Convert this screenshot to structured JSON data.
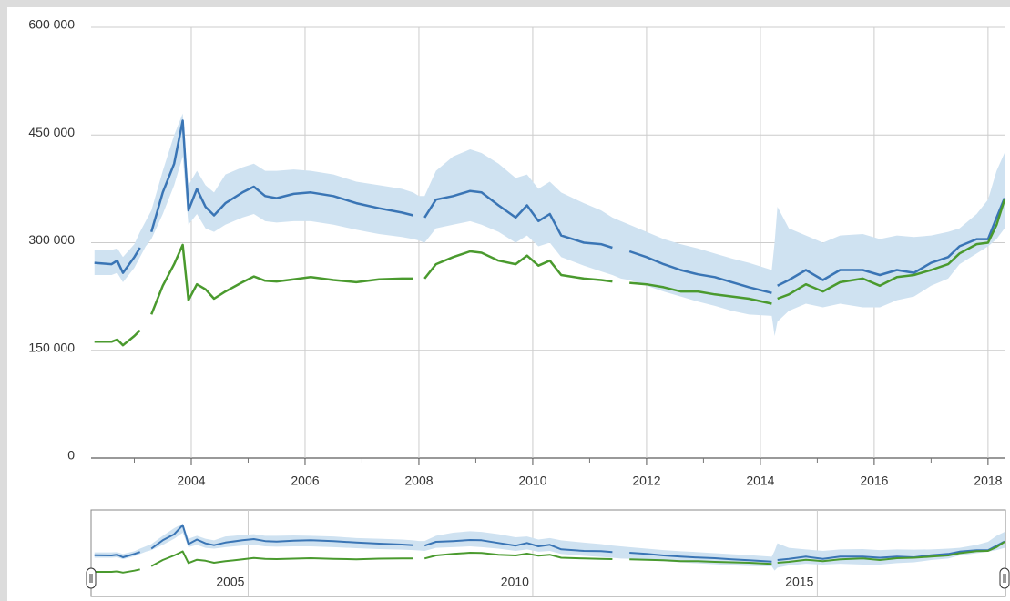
{
  "chart_data": {
    "type": "line",
    "x": [
      2002.3,
      2002.6,
      2002.7,
      2002.8,
      2003.0,
      2003.1,
      2003.2,
      2003.3,
      2003.5,
      2003.7,
      2003.85,
      2003.95,
      2004.1,
      2004.25,
      2004.4,
      2004.6,
      2004.9,
      2005.1,
      2005.3,
      2005.5,
      2005.8,
      2006.1,
      2006.5,
      2006.9,
      2007.3,
      2007.7,
      2007.9,
      2008.0,
      2008.1,
      2008.3,
      2008.6,
      2008.9,
      2009.1,
      2009.4,
      2009.7,
      2009.9,
      2010.1,
      2010.3,
      2010.5,
      2010.9,
      2011.2,
      2011.4,
      2011.55,
      2011.7,
      2012.0,
      2012.3,
      2012.6,
      2012.9,
      2013.2,
      2013.5,
      2013.8,
      2014.2,
      2014.25,
      2014.3,
      2014.5,
      2014.8,
      2015.1,
      2015.4,
      2015.8,
      2016.1,
      2016.4,
      2016.7,
      2017.0,
      2017.3,
      2017.5,
      2017.8,
      2018.0,
      2018.15,
      2018.29
    ],
    "series": [
      {
        "color": "#3a75b5",
        "values": [
          272000,
          270000,
          275000,
          258000,
          280000,
          293000,
          null,
          315000,
          370000,
          410000,
          470000,
          345000,
          375000,
          350000,
          338000,
          355000,
          370000,
          378000,
          365000,
          362000,
          368000,
          370000,
          365000,
          355000,
          348000,
          342000,
          338000,
          null,
          335000,
          360000,
          365000,
          372000,
          370000,
          352000,
          335000,
          352000,
          330000,
          340000,
          310000,
          300000,
          298000,
          293000,
          null,
          288000,
          280000,
          270000,
          262000,
          256000,
          252000,
          245000,
          238000,
          230000,
          null,
          240000,
          248000,
          262000,
          248000,
          262000,
          262000,
          255000,
          262000,
          258000,
          272000,
          280000,
          295000,
          305000,
          305000,
          335000,
          362000
        ]
      },
      {
        "color": "#4a9a2e",
        "values": [
          162000,
          162000,
          165000,
          157000,
          170000,
          178000,
          null,
          200000,
          240000,
          270000,
          297000,
          220000,
          242000,
          235000,
          222000,
          232000,
          245000,
          253000,
          247000,
          246000,
          249000,
          252000,
          248000,
          245000,
          249000,
          250000,
          250000,
          null,
          250000,
          270000,
          280000,
          288000,
          286000,
          275000,
          270000,
          282000,
          268000,
          275000,
          255000,
          250000,
          248000,
          246000,
          null,
          244000,
          242000,
          238000,
          232000,
          232000,
          228000,
          225000,
          222000,
          215000,
          null,
          222000,
          228000,
          242000,
          232000,
          245000,
          250000,
          240000,
          252000,
          255000,
          262000,
          270000,
          285000,
          298000,
          300000,
          325000,
          360000
        ]
      }
    ],
    "band": {
      "color": "#cfe2f1",
      "upper": [
        290000,
        290000,
        292000,
        280000,
        298000,
        315000,
        330000,
        345000,
        400000,
        450000,
        480000,
        380000,
        400000,
        380000,
        370000,
        395000,
        405000,
        410000,
        400000,
        400000,
        402000,
        400000,
        395000,
        385000,
        380000,
        375000,
        370000,
        365000,
        365000,
        400000,
        420000,
        430000,
        425000,
        410000,
        390000,
        395000,
        375000,
        385000,
        370000,
        355000,
        345000,
        335000,
        330000,
        325000,
        315000,
        305000,
        298000,
        292000,
        285000,
        278000,
        272000,
        262000,
        300000,
        350000,
        320000,
        310000,
        300000,
        310000,
        312000,
        305000,
        310000,
        308000,
        310000,
        315000,
        320000,
        340000,
        360000,
        400000,
        425000
      ],
      "lower": [
        255000,
        255000,
        258000,
        245000,
        265000,
        280000,
        295000,
        305000,
        340000,
        380000,
        420000,
        325000,
        340000,
        320000,
        315000,
        325000,
        335000,
        340000,
        330000,
        328000,
        330000,
        330000,
        325000,
        318000,
        312000,
        308000,
        305000,
        303000,
        300000,
        320000,
        325000,
        330000,
        325000,
        315000,
        300000,
        310000,
        295000,
        300000,
        280000,
        268000,
        260000,
        255000,
        250000,
        248000,
        240000,
        232000,
        225000,
        218000,
        212000,
        205000,
        200000,
        198000,
        170000,
        190000,
        205000,
        215000,
        210000,
        215000,
        210000,
        210000,
        220000,
        225000,
        240000,
        250000,
        270000,
        285000,
        295000,
        305000,
        320000
      ]
    },
    "xlim": [
      2002.24,
      2018.29
    ],
    "ylim": [
      0,
      600000
    ],
    "yticks": [
      {
        "value": 0,
        "label": "0"
      },
      {
        "value": 150000,
        "label": "150 000"
      },
      {
        "value": 300000,
        "label": "300 000"
      },
      {
        "value": 450000,
        "label": "450 000"
      },
      {
        "value": 600000,
        "label": "600 000"
      }
    ],
    "xticks": [
      2004,
      2006,
      2008,
      2010,
      2012,
      2014,
      2016,
      2018
    ],
    "xminorticks": [
      2003,
      2005,
      2007,
      2009,
      2011,
      2013,
      2015,
      2017
    ],
    "grid": true,
    "navigator": {
      "xticks": [
        2005,
        2010,
        2015
      ]
    }
  }
}
